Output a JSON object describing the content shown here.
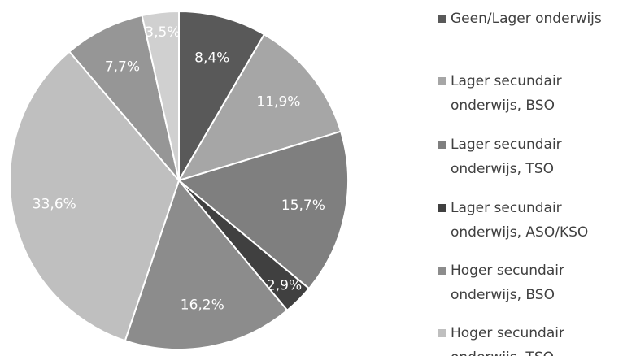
{
  "chart_data": {
    "type": "pie",
    "categories": [
      "Geen/Lager onderwijs",
      "Lager secundair\nonderwijs, BSO",
      "Lager secundair\nonderwijs, TSO",
      "Lager secundair\nonderwijs, ASO/KSO",
      "Hoger secundair\nonderwijs, BSO",
      "Hoger secundair\nonderwijs, TSO",
      null,
      null
    ],
    "values": [
      8.4,
      11.9,
      15.7,
      2.9,
      16.2,
      33.6,
      7.7,
      3.5
    ],
    "value_labels": [
      "8,4%",
      "11,9%",
      "15,7%",
      "2,9%",
      "16,2%",
      "33,6%",
      "7,7%",
      "3,5%"
    ],
    "colors": [
      "#595959",
      "#a6a6a6",
      "#7f7f7f",
      "#404040",
      "#8c8c8c",
      "#bfbfbf",
      "#969696",
      "#d0d0d0"
    ],
    "legend": "right"
  }
}
